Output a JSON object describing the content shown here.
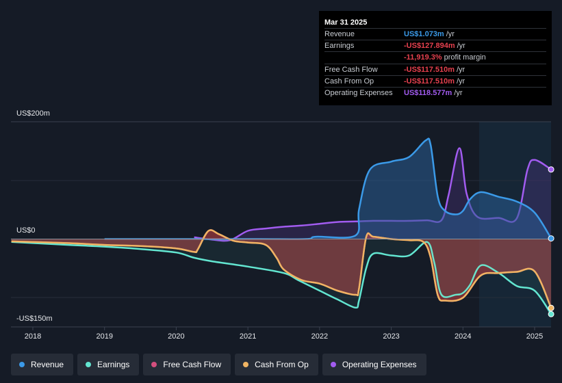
{
  "tooltip": {
    "date": "Mar 31 2025",
    "rows": [
      {
        "label": "Revenue",
        "value": "US$1.073m",
        "unit": "/yr",
        "color": "#3b9ae8"
      },
      {
        "label": "Earnings",
        "value": "-US$127.894m",
        "unit": "/yr",
        "color": "#e8414f"
      },
      {
        "label": "",
        "value": "-11,919.3%",
        "unit": "profit margin",
        "color": "#e8414f"
      },
      {
        "label": "Free Cash Flow",
        "value": "-US$117.510m",
        "unit": "/yr",
        "color": "#e8414f"
      },
      {
        "label": "Cash From Op",
        "value": "-US$117.510m",
        "unit": "/yr",
        "color": "#e8414f"
      },
      {
        "label": "Operating Expenses",
        "value": "US$118.577m",
        "unit": "/yr",
        "color": "#a25cf0"
      }
    ]
  },
  "legend": [
    {
      "label": "Revenue",
      "color": "#3b9ae8"
    },
    {
      "label": "Earnings",
      "color": "#63e6d1"
    },
    {
      "label": "Free Cash Flow",
      "color": "#d44f7e"
    },
    {
      "label": "Cash From Op",
      "color": "#f0b463"
    },
    {
      "label": "Operating Expenses",
      "color": "#a25cf0"
    }
  ],
  "chart_data": {
    "type": "line",
    "title": "",
    "xlabel": "",
    "ylabel": "",
    "y_top_label": "US$200m",
    "y_zero_label": "US$0",
    "y_bottom_label": "-US$150m",
    "ylim": [
      -150,
      200
    ],
    "xlim": [
      2017.7,
      2025.23
    ],
    "xticks": [
      "2018",
      "2019",
      "2020",
      "2021",
      "2022",
      "2023",
      "2024",
      "2025"
    ],
    "forecast_start": 2024.25,
    "series": [
      {
        "name": "Revenue",
        "color": "#3b9ae8",
        "x": [
          2019.0,
          2021.0,
          2021.8,
          2021.95,
          2022.5,
          2022.55,
          2022.7,
          2023.0,
          2023.25,
          2023.48,
          2023.55,
          2023.65,
          2023.75,
          2023.9,
          2024.0,
          2024.1,
          2024.25,
          2024.5,
          2024.75,
          2025.0,
          2025.23
        ],
        "y": [
          0,
          0,
          0,
          4,
          6,
          50,
          118,
          132,
          140,
          168,
          160,
          72,
          48,
          42,
          48,
          68,
          80,
          72,
          64,
          45,
          1.1
        ]
      },
      {
        "name": "Earnings",
        "color": "#63e6d1",
        "x": [
          2017.7,
          2018.5,
          2019.0,
          2019.5,
          2020.0,
          2020.25,
          2020.5,
          2021.0,
          2021.5,
          2021.7,
          2022.0,
          2022.25,
          2022.5,
          2022.55,
          2022.65,
          2022.75,
          2023.0,
          2023.25,
          2023.5,
          2023.6,
          2023.7,
          2023.9,
          2024.0,
          2024.1,
          2024.25,
          2024.5,
          2024.75,
          2025.0,
          2025.23
        ],
        "y": [
          -5,
          -10,
          -13,
          -17,
          -23,
          -32,
          -38,
          -47,
          -58,
          -70,
          -88,
          -103,
          -117,
          -105,
          -50,
          -25,
          -28,
          -28,
          -5,
          -40,
          -95,
          -95,
          -92,
          -78,
          -45,
          -58,
          -80,
          -88,
          -128
        ]
      },
      {
        "name": "Free Cash Flow",
        "color": "#d44f7e",
        "x": [
          2017.7,
          2018.5,
          2019.0,
          2019.5,
          2020.0,
          2020.25,
          2020.3,
          2020.45,
          2020.6,
          2020.8,
          2021.0,
          2021.25,
          2021.4,
          2021.5,
          2021.75,
          2022.0,
          2022.25,
          2022.5,
          2022.55,
          2022.65,
          2022.75,
          2023.0,
          2023.25,
          2023.45,
          2023.55,
          2023.65,
          2023.75,
          2024.0,
          2024.25,
          2024.5,
          2024.75,
          2025.0,
          2025.23
        ],
        "y": [
          -4,
          -7,
          -10,
          -12,
          -16,
          -22,
          -18,
          14,
          8,
          -3,
          -6,
          -10,
          -32,
          -52,
          -70,
          -76,
          -88,
          -95,
          -85,
          3,
          4,
          0,
          -2,
          -5,
          -32,
          -96,
          -105,
          -100,
          -62,
          -58,
          -56,
          -55,
          -117.5
        ]
      },
      {
        "name": "Cash From Op",
        "color": "#f0b463",
        "x": [
          2017.7,
          2018.5,
          2019.0,
          2019.5,
          2020.0,
          2020.25,
          2020.3,
          2020.45,
          2020.6,
          2020.8,
          2021.0,
          2021.25,
          2021.4,
          2021.5,
          2021.75,
          2022.0,
          2022.25,
          2022.5,
          2022.55,
          2022.65,
          2022.75,
          2023.0,
          2023.25,
          2023.45,
          2023.55,
          2023.65,
          2023.75,
          2024.0,
          2024.25,
          2024.5,
          2024.75,
          2025.0,
          2025.23
        ],
        "y": [
          -4,
          -7,
          -10,
          -12,
          -16,
          -22,
          -18,
          14,
          8,
          -3,
          -6,
          -10,
          -32,
          -52,
          -70,
          -76,
          -88,
          -95,
          -85,
          3,
          4,
          0,
          -2,
          -5,
          -32,
          -96,
          -105,
          -100,
          -62,
          -58,
          -56,
          -55,
          -117.5
        ]
      },
      {
        "name": "Operating Expenses",
        "color": "#a25cf0",
        "x": [
          2020.25,
          2020.5,
          2020.75,
          2021.0,
          2021.25,
          2021.5,
          2021.75,
          2022.0,
          2022.25,
          2022.5,
          2022.75,
          2023.0,
          2023.25,
          2023.5,
          2023.7,
          2023.8,
          2023.95,
          2024.05,
          2024.2,
          2024.5,
          2024.75,
          2024.9,
          2025.0,
          2025.23
        ],
        "y": [
          3,
          -1,
          -2,
          14,
          18,
          21,
          23,
          26,
          29,
          30,
          31,
          31,
          31,
          32,
          32,
          75,
          155,
          78,
          38,
          36,
          35,
          118,
          135,
          118.6
        ]
      }
    ]
  }
}
